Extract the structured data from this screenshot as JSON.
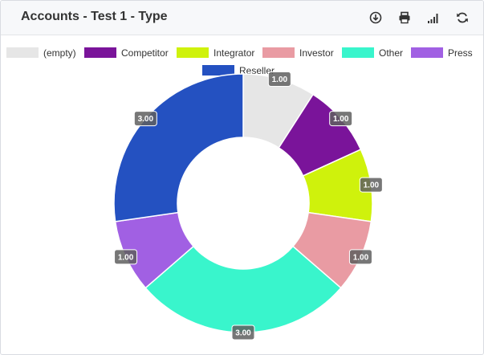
{
  "panel": {
    "title": "Accounts - Test 1 - Type"
  },
  "toolbar": {
    "icons": [
      "download-icon",
      "print-icon",
      "signal-bars-icon",
      "refresh-icon"
    ]
  },
  "chart_data": {
    "type": "pie",
    "donut": true,
    "categories": [
      "(empty)",
      "Competitor",
      "Integrator",
      "Investor",
      "Other",
      "Press",
      "Reseller"
    ],
    "values": [
      1,
      1,
      1,
      1,
      3,
      1,
      3
    ],
    "value_labels": [
      "1.00",
      "1.00",
      "1.00",
      "1.00",
      "3.00",
      "1.00",
      "3.00"
    ],
    "colors": [
      "#e6e6e6",
      "#7a149a",
      "#cff20c",
      "#e99ba3",
      "#39f5cc",
      "#a160e3",
      "#2451c1"
    ],
    "legend_position": "top"
  }
}
